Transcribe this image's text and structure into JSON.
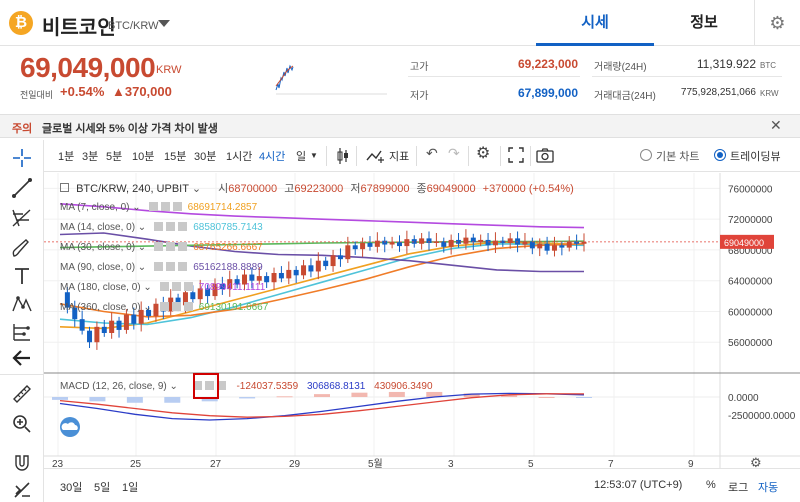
{
  "header": {
    "coin_symbol": "₿",
    "coin_name": "비트코인",
    "pair": "BTC/KRW",
    "tabs": [
      {
        "label": "시세"
      },
      {
        "label": "정보"
      }
    ],
    "settings_icon": "gear-icon"
  },
  "summary": {
    "price": "69,049,000",
    "price_unit": "KRW",
    "prev_label": "전일대비",
    "change_pct": "+0.54%",
    "change_abs": "▲370,000",
    "high_label": "고가",
    "high": "69,223,000",
    "low_label": "저가",
    "low": "67,899,000",
    "volume_label": "거래량(24H)",
    "volume": "11,319.922",
    "volume_unit": "BTC",
    "value_label": "거래대금(24H)",
    "value": "775,928,251,066",
    "value_unit": "KRW"
  },
  "notice": {
    "tag": "주의",
    "text": "글로벌 시세와 5% 이상 가격 차이 발생",
    "close_icon": "close-icon"
  },
  "toolbar": {
    "intervals": [
      "1분",
      "3분",
      "5분",
      "10분",
      "15분",
      "30분",
      "1시간",
      "4시간",
      "일"
    ],
    "selected_interval": "4시간",
    "indicator_label": "지표",
    "mode_basic": "기본 차트",
    "mode_trading": "트레이딩뷰",
    "selected_mode": "트레이딩뷰"
  },
  "chart_header": {
    "symbol": "BTC/KRW, 240, UPBIT",
    "open_label": "시",
    "open": "68700000",
    "high_label": "고",
    "high": "69223000",
    "low_label": "저",
    "low": "67899000",
    "close_label": "종",
    "close": "69049000",
    "change": "+370000 (+0.54%)"
  },
  "ma_legend": [
    {
      "name": "MA (7, close, 0)",
      "value": "68691714.2857",
      "color": "#f0a020"
    },
    {
      "name": "MA (14, close, 0)",
      "value": "68580785.7143",
      "color": "#4fc3d9"
    },
    {
      "name": "MA (30, close, 0)",
      "value": "68765266.6667",
      "color": "#f07c28"
    },
    {
      "name": "MA (90, close, 0)",
      "value": "65162188.8889",
      "color": "#6a4fa6"
    },
    {
      "name": "MA (180, close, 0)",
      "value": "70899411.1111",
      "color": "#b44ae0"
    },
    {
      "name": "MA (360, close, 0)",
      "value": "69130191.6667",
      "color": "#5cb85c"
    }
  ],
  "price_axis": [
    "76000000",
    "72000000",
    "68000000",
    "64000000",
    "60000000",
    "56000000"
  ],
  "last_price_label": "69049000",
  "macd": {
    "name": "MACD (12, 26, close, 9)",
    "histogram": "-124037.5359",
    "macd": "306868.8131",
    "signal": "430906.3490",
    "axis": [
      "0.0000",
      "-2500000.0000"
    ]
  },
  "time_axis": [
    "23",
    "25",
    "27",
    "29",
    "5월",
    "3",
    "5",
    "7",
    "9"
  ],
  "bottom": {
    "ranges": [
      "30일",
      "5일",
      "1일"
    ],
    "clock": "12:53:07 (UTC+9)",
    "percent": "%",
    "log": "로그",
    "auto": "자동"
  },
  "chart_data": {
    "type": "line",
    "series_note": "candlestick BTC/KRW 4h",
    "x": [
      "23",
      "25",
      "27",
      "29",
      "5월",
      "3",
      "5",
      "7",
      "9"
    ],
    "ylim": [
      52000000,
      78000000
    ],
    "yticks": [
      56000000,
      60000000,
      64000000,
      68000000,
      72000000,
      76000000
    ],
    "last_price": 69049000
  }
}
